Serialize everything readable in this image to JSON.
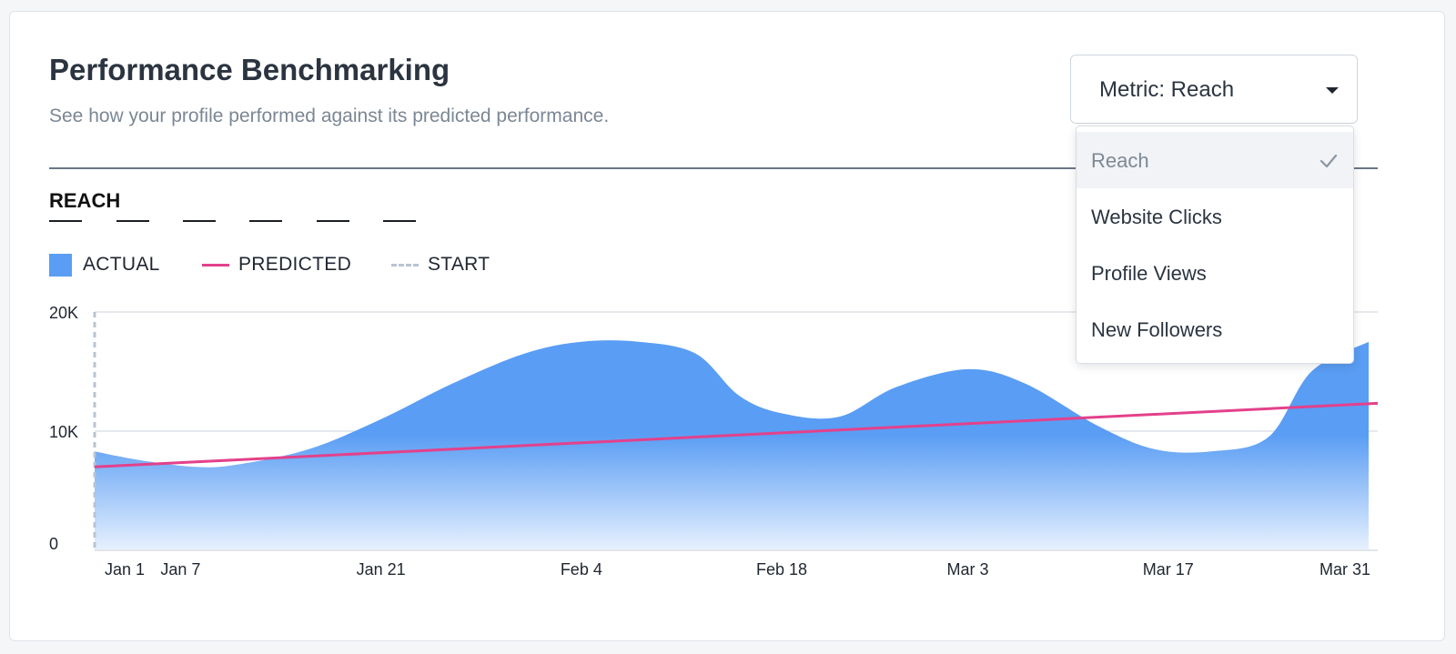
{
  "header": {
    "title": "Performance Benchmarking",
    "subtitle": "See how your profile performed against its predicted performance."
  },
  "section": {
    "label": "REACH"
  },
  "legend": {
    "actual": "ACTUAL",
    "predicted": "PREDICTED",
    "start": "START"
  },
  "select": {
    "label": "Metric: Reach",
    "expanded": true,
    "options": [
      {
        "label": "Reach",
        "selected": true
      },
      {
        "label": "Website Clicks",
        "selected": false
      },
      {
        "label": "Profile Views",
        "selected": false
      },
      {
        "label": "New Followers",
        "selected": false
      }
    ]
  },
  "colors": {
    "actual": "#5a9df4",
    "actual_light": "#e7f1fe",
    "predicted": "#e3418b",
    "start": "#b8c4d2",
    "grid": "#dde2e8",
    "text": "#2b3440"
  },
  "icons": {
    "dropdown": "chevron-down-icon",
    "selected": "check-icon"
  },
  "chart_data": {
    "type": "area",
    "xlabel": "",
    "ylabel": "",
    "ylim": [
      0,
      20000
    ],
    "yticks": [
      0,
      10000,
      20000
    ],
    "ytick_labels": [
      "0",
      "10K",
      "20K"
    ],
    "xlim": [
      "2021-01-01",
      "2021-03-31"
    ],
    "xticks": [
      "2021-01-01",
      "2021-01-07",
      "2021-01-21",
      "2021-02-04",
      "2021-02-18",
      "2021-03-03",
      "2021-03-17",
      "2021-03-31"
    ],
    "xtick_labels": [
      "Jan 1",
      "Jan 7",
      "Jan 21",
      "Feb 4",
      "Feb 18",
      "Mar 3",
      "Mar 17",
      "Mar 31"
    ],
    "grid": true,
    "legend_position": "top-left",
    "series": [
      {
        "name": "ACTUAL",
        "type": "area",
        "points": [
          [
            "2021-01-01",
            8300
          ],
          [
            "2021-01-04",
            7600
          ],
          [
            "2021-01-08",
            7000
          ],
          [
            "2021-01-11",
            7200
          ],
          [
            "2021-01-16",
            8500
          ],
          [
            "2021-01-21",
            11000
          ],
          [
            "2021-01-26",
            14000
          ],
          [
            "2021-01-31",
            16500
          ],
          [
            "2021-02-04",
            17500
          ],
          [
            "2021-02-08",
            17500
          ],
          [
            "2021-02-12",
            16500
          ],
          [
            "2021-02-15",
            13000
          ],
          [
            "2021-02-18",
            11500
          ],
          [
            "2021-02-22",
            11200
          ],
          [
            "2021-02-26",
            13700
          ],
          [
            "2021-03-03",
            15200
          ],
          [
            "2021-03-07",
            14000
          ],
          [
            "2021-03-12",
            10500
          ],
          [
            "2021-03-16",
            8500
          ],
          [
            "2021-03-20",
            8300
          ],
          [
            "2021-03-24",
            9500
          ],
          [
            "2021-03-27",
            15000
          ],
          [
            "2021-03-31",
            17500
          ]
        ]
      },
      {
        "name": "PREDICTED",
        "type": "line",
        "points": [
          [
            "2021-01-01",
            7000
          ],
          [
            "2021-03-31",
            12300
          ]
        ]
      }
    ],
    "annotations": [
      {
        "label": "START",
        "type": "vertical-dashed-line",
        "x": "2021-01-01"
      }
    ]
  }
}
